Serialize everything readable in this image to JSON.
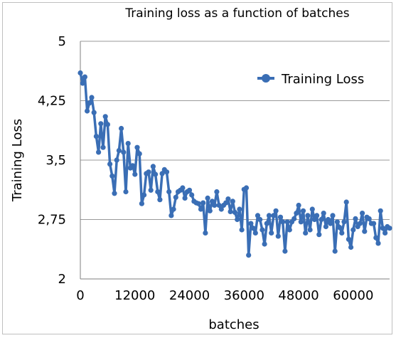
{
  "chart_data": {
    "type": "line",
    "title": "Training loss as a function of batches",
    "xlabel": "batches",
    "ylabel": "Training Loss",
    "xlim": [
      0,
      68000
    ],
    "ylim": [
      2,
      5
    ],
    "x_ticks": [
      0,
      12000,
      24000,
      36000,
      48000,
      60000
    ],
    "x_tick_labels": [
      "0",
      "12000",
      "24000",
      "36000",
      "48000",
      "60000"
    ],
    "y_ticks": [
      2,
      2.75,
      3.5,
      4.25,
      5
    ],
    "y_tick_labels": [
      "2",
      "2,75",
      "3,5",
      "4,25",
      "5"
    ],
    "grid": "horizontal",
    "legend_position": "top-right",
    "series_color": "#3a6eb5",
    "series": [
      {
        "name": "Training Loss",
        "marker": "circle",
        "x": [
          0,
          500,
          1000,
          1500,
          2000,
          2500,
          3000,
          3500,
          4000,
          4500,
          5000,
          5500,
          6000,
          6500,
          7000,
          7500,
          8000,
          8500,
          9000,
          9500,
          10000,
          10500,
          11000,
          11500,
          12000,
          12500,
          13000,
          13500,
          14000,
          14500,
          15000,
          15500,
          16000,
          16500,
          17000,
          17500,
          18000,
          18500,
          19000,
          19500,
          20000,
          20500,
          21000,
          21500,
          22000,
          22500,
          23000,
          23500,
          24000,
          24500,
          25000,
          25500,
          26000,
          26500,
          27000,
          27500,
          28000,
          28500,
          29000,
          29500,
          30000,
          30500,
          31000,
          31500,
          32000,
          32500,
          33000,
          33500,
          34000,
          34500,
          35000,
          35500,
          36000,
          36500,
          37000,
          37500,
          38000,
          38500,
          39000,
          39500,
          40000,
          40500,
          41000,
          41500,
          42000,
          42500,
          43000,
          43500,
          44000,
          44500,
          45000,
          45500,
          46000,
          46500,
          47000,
          47500,
          48000,
          48500,
          49000,
          49500,
          50000,
          50500,
          51000,
          51500,
          52000,
          52500,
          53000,
          53500,
          54000,
          54500,
          55000,
          55500,
          56000,
          56500,
          57000,
          57500,
          58000,
          58500,
          59000,
          59500,
          60000,
          60500,
          61000,
          61500,
          62000,
          62500,
          63000,
          63500,
          64000,
          64500,
          65000,
          65500,
          66000,
          66500,
          67000,
          67500,
          68000
        ],
        "values": [
          4.6,
          4.47,
          4.55,
          4.12,
          4.22,
          4.29,
          4.1,
          3.8,
          3.6,
          3.96,
          3.66,
          4.05,
          3.95,
          3.45,
          3.3,
          3.08,
          3.5,
          3.62,
          3.9,
          3.6,
          3.1,
          3.71,
          3.4,
          3.43,
          3.32,
          3.66,
          3.58,
          2.95,
          3.06,
          3.33,
          3.35,
          3.12,
          3.42,
          3.32,
          3.1,
          3.0,
          3.33,
          3.38,
          3.35,
          3.1,
          2.8,
          2.88,
          3.03,
          3.1,
          3.12,
          3.15,
          3.02,
          3.1,
          3.12,
          3.06,
          2.98,
          2.96,
          2.95,
          2.88,
          2.96,
          2.58,
          3.02,
          2.86,
          2.98,
          2.93,
          3.1,
          2.93,
          2.88,
          2.93,
          2.96,
          3.01,
          2.85,
          2.98,
          2.84,
          2.75,
          2.88,
          2.62,
          3.13,
          3.15,
          2.3,
          2.7,
          2.64,
          2.58,
          2.8,
          2.75,
          2.62,
          2.44,
          2.7,
          2.8,
          2.58,
          2.8,
          2.86,
          2.54,
          2.78,
          2.72,
          2.35,
          2.72,
          2.62,
          2.72,
          2.76,
          2.83,
          2.93,
          2.72,
          2.86,
          2.58,
          2.8,
          2.62,
          2.88,
          2.75,
          2.8,
          2.56,
          2.75,
          2.83,
          2.66,
          2.75,
          2.7,
          2.8,
          2.35,
          2.72,
          2.65,
          2.58,
          2.72,
          2.97,
          2.5,
          2.4,
          2.62,
          2.76,
          2.66,
          2.7,
          2.83,
          2.6,
          2.78,
          2.76,
          2.7,
          2.7,
          2.52,
          2.45,
          2.86,
          2.64,
          2.58,
          2.66,
          2.64
        ]
      }
    ]
  }
}
